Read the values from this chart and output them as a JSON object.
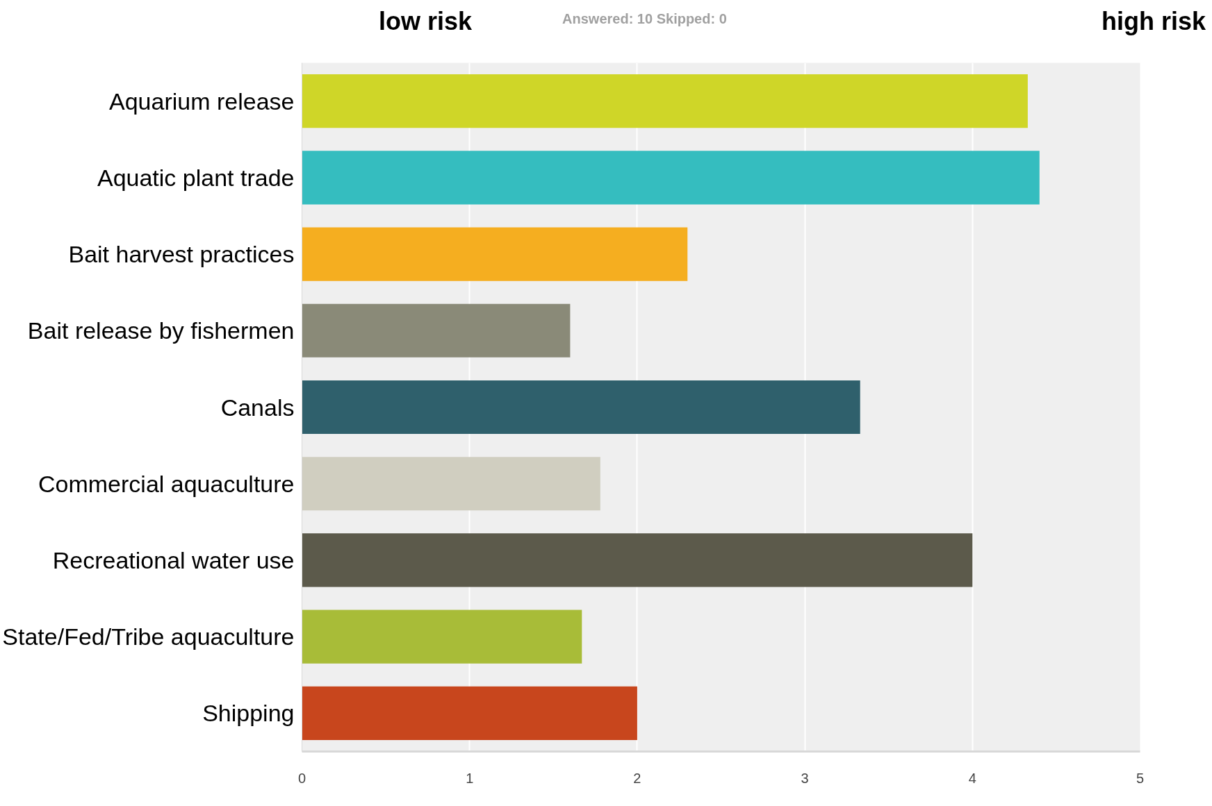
{
  "chart_data": {
    "type": "bar",
    "orientation": "horizontal",
    "categories": [
      "Aquarium release",
      "Aquatic plant trade",
      "Bait harvest practices",
      "Bait release by fishermen",
      "Canals",
      "Commercial aquaculture",
      "Recreational water use",
      "State/Fed/Tribe aquaculture",
      "Shipping"
    ],
    "values": [
      4.33,
      4.4,
      2.3,
      1.6,
      3.33,
      1.78,
      4.0,
      1.67,
      2.0
    ],
    "colors": [
      "#cfd628",
      "#35bdbf",
      "#f5ae20",
      "#8a8a78",
      "#2f606c",
      "#d0cec0",
      "#5c5a4b",
      "#a8bc38",
      "#c8461d"
    ],
    "xlim": [
      0,
      5
    ],
    "xticks": [
      0,
      1,
      2,
      3,
      4,
      5
    ],
    "grid": "x",
    "annotations": [
      "low risk",
      "Answered: 10    Skipped: 0",
      "high risk"
    ]
  }
}
